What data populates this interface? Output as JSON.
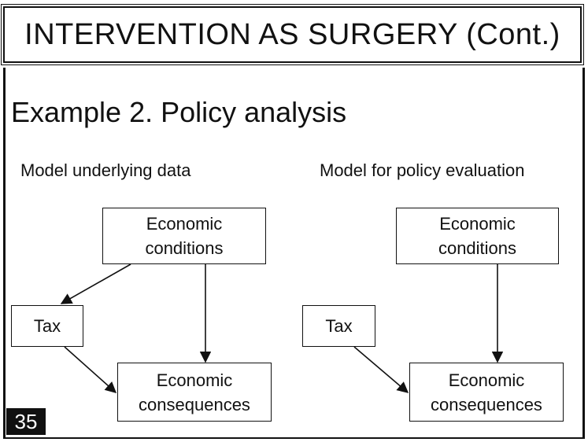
{
  "title": "INTERVENTION AS SURGERY (Cont.)",
  "heading": "Example 2.  Policy analysis",
  "left_diagram": {
    "label": "Model underlying data",
    "nodes": {
      "economic_conditions": [
        "Economic",
        "conditions"
      ],
      "tax": "Tax",
      "economic_consequences": [
        "Economic",
        "consequences"
      ]
    }
  },
  "right_diagram": {
    "label": "Model for policy evaluation",
    "nodes": {
      "economic_conditions": [
        "Economic",
        "conditions"
      ],
      "tax": "Tax",
      "economic_consequences": [
        "Economic",
        "consequences"
      ]
    }
  },
  "slide_number": "35"
}
